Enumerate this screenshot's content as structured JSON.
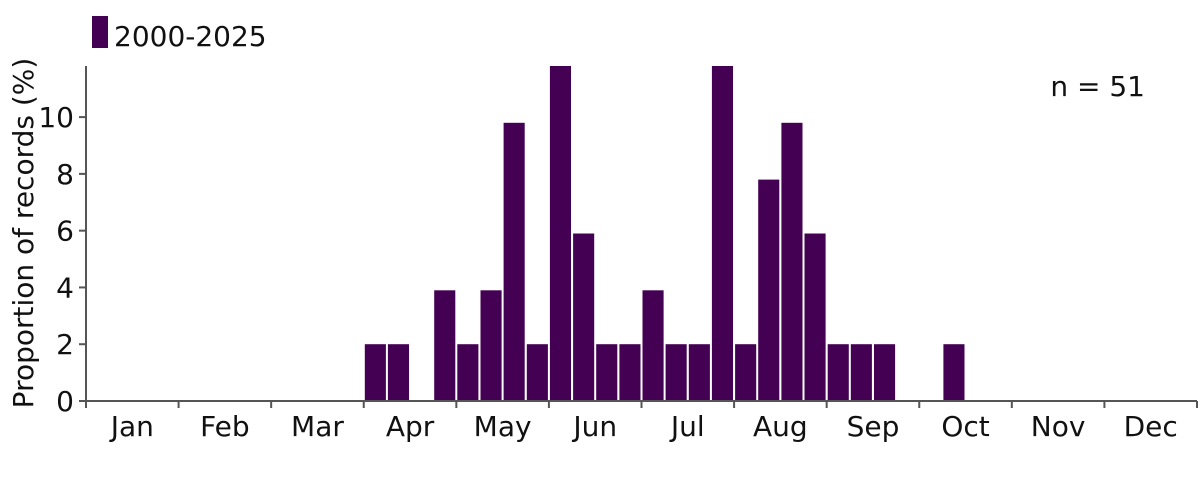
{
  "chart_data": {
    "type": "bar",
    "title": "",
    "xlabel": "",
    "ylabel": "Proportion of records (%)",
    "ylim": [
      0,
      11.8
    ],
    "yticks": [
      0,
      2,
      4,
      6,
      8,
      10
    ],
    "months": [
      "Jan",
      "Feb",
      "Mar",
      "Apr",
      "May",
      "Jun",
      "Jul",
      "Aug",
      "Sep",
      "Oct",
      "Nov",
      "Dec"
    ],
    "bins_per_month": 4,
    "series": [
      {
        "name": "2000-2025",
        "color": "#440154",
        "values": [
          0,
          0,
          0,
          0,
          0,
          0,
          0,
          0,
          0,
          0,
          0,
          0,
          2,
          2,
          0,
          3.9,
          2,
          3.9,
          9.8,
          2,
          11.8,
          5.9,
          2,
          2,
          3.9,
          2,
          2,
          11.8,
          2,
          7.8,
          9.8,
          5.9,
          2,
          2,
          2,
          0,
          0,
          2,
          0,
          0,
          0,
          0,
          0,
          0,
          0,
          0,
          0,
          0
        ]
      }
    ],
    "legend": {
      "label": "2000-2025",
      "position": "top-left"
    },
    "annotation": "n = 51",
    "grid": false
  }
}
